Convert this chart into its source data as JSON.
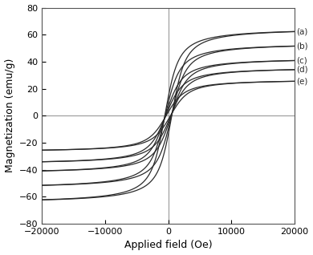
{
  "title": "",
  "xlabel": "Applied field (Oe)",
  "ylabel": "Magnetization (emu/g)",
  "xlim": [
    -20000,
    20000
  ],
  "ylim": [
    -80,
    80
  ],
  "xticks": [
    -20000,
    -10000,
    0,
    10000,
    20000
  ],
  "yticks": [
    -80,
    -60,
    -40,
    -20,
    0,
    20,
    40,
    60,
    80
  ],
  "curves": [
    {
      "label": "(a)",
      "Ms": 65,
      "Hc": 550,
      "k": 0.0012
    },
    {
      "label": "(b)",
      "Ms": 54,
      "Hc": 500,
      "k": 0.0011
    },
    {
      "label": "(c)",
      "Ms": 43,
      "Hc": 450,
      "k": 0.001
    },
    {
      "label": "(d)",
      "Ms": 36,
      "Hc": 400,
      "k": 0.00095
    },
    {
      "label": "(e)",
      "Ms": 27,
      "Hc": 350,
      "k": 0.0009
    }
  ],
  "line_color": "#2a2a2a",
  "ref_line_color": "#999999",
  "background_color": "#ffffff",
  "figsize": [
    3.9,
    3.18
  ],
  "dpi": 100
}
